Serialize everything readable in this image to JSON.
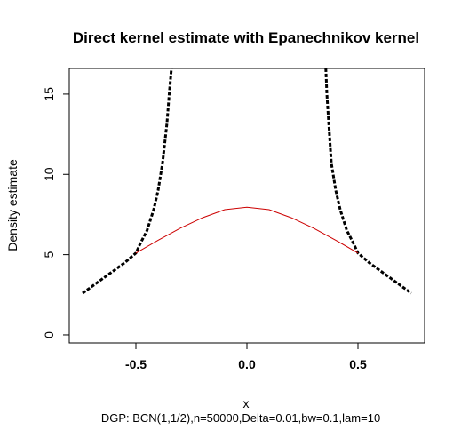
{
  "chart_data": {
    "type": "line",
    "title": "Direct kernel estimate with Epanechnikov kernel",
    "xlabel": "x",
    "ylabel": "Density estimate",
    "caption": "DGP: BCN(1,1/2),n=50000,Delta=0.01,bw=0.1,lam=10",
    "xlim": [
      -0.8,
      0.8
    ],
    "ylim": [
      -0.5,
      16.6
    ],
    "x_ticks": [
      "-0.5",
      "0.0",
      "0.5"
    ],
    "x_tick_values": [
      -0.5,
      0.0,
      0.5
    ],
    "y_ticks": [
      "0",
      "5",
      "10",
      "15"
    ],
    "y_tick_values": [
      0,
      5,
      10,
      15
    ],
    "grid": false,
    "legend": "none",
    "series": [
      {
        "style": "dashed",
        "color": "#000000",
        "x": [
          -0.74,
          -0.7,
          -0.65,
          -0.6,
          -0.55,
          -0.5,
          -0.48,
          -0.45,
          -0.42,
          -0.4,
          -0.38,
          -0.36,
          -0.35,
          -0.34
        ],
        "y": [
          2.6,
          3.0,
          3.5,
          4.0,
          4.5,
          5.1,
          5.7,
          6.5,
          7.8,
          9.0,
          10.7,
          13.2,
          15.0,
          16.6
        ]
      },
      {
        "style": "dashed",
        "color": "#000000",
        "x": [
          0.355,
          0.36,
          0.38,
          0.4,
          0.42,
          0.45,
          0.48,
          0.5,
          0.55,
          0.6,
          0.65,
          0.7,
          0.74
        ],
        "y": [
          16.6,
          15.0,
          10.7,
          9.0,
          7.8,
          6.5,
          5.7,
          5.1,
          4.5,
          4.0,
          3.5,
          3.0,
          2.6
        ]
      },
      {
        "style": "solid",
        "color": "#cc0000",
        "x": [
          -0.5,
          -0.4,
          -0.3,
          -0.2,
          -0.1,
          0.0,
          0.1,
          0.2,
          0.3,
          0.4,
          0.5
        ],
        "y": [
          5.1,
          5.9,
          6.65,
          7.3,
          7.8,
          7.95,
          7.8,
          7.3,
          6.65,
          5.9,
          5.1
        ]
      }
    ]
  }
}
